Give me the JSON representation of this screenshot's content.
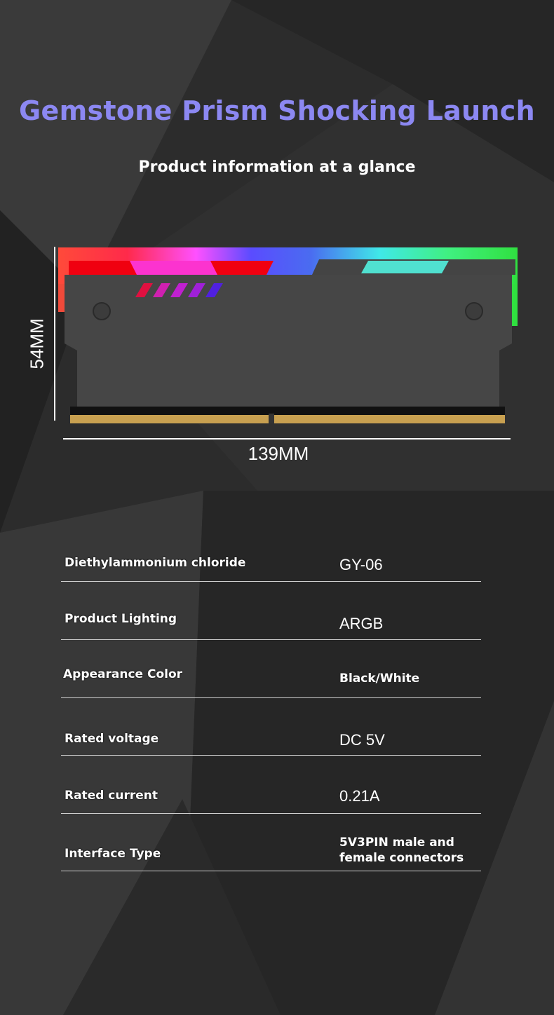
{
  "header": {
    "title": "Gemstone Prism Shocking Launch",
    "subtitle": "Product information at a glance"
  },
  "colors": {
    "title": "#8c88f2",
    "background": "#2e2e2e",
    "text": "#ffffff"
  },
  "product_image": {
    "name": "ARGB memory module heatsink",
    "height_label": "54MM",
    "width_label": "139MM"
  },
  "specs": [
    {
      "label": "Diethylammonium chloride",
      "value": "GY-06"
    },
    {
      "label": "Product Lighting",
      "value": "ARGB"
    },
    {
      "label": "Appearance Color",
      "value": "Black/White"
    },
    {
      "label": "Rated voltage",
      "value": "DC 5V"
    },
    {
      "label": "Rated current",
      "value": "0.21A"
    },
    {
      "label": "Interface Type",
      "value": "5V3PIN male and female connectors"
    }
  ]
}
